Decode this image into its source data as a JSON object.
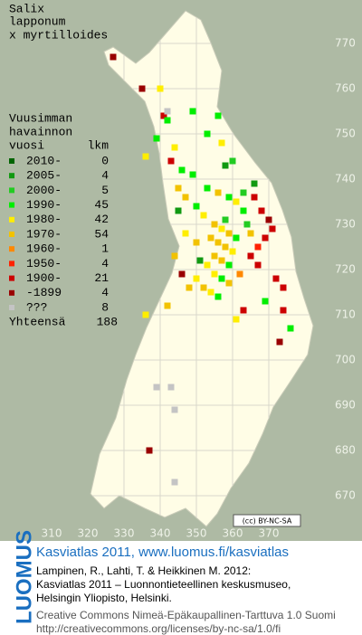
{
  "title": [
    "Salix",
    "lapponum",
    "x myrtilloides"
  ],
  "legend": {
    "header": [
      "Vuusimman",
      "havainnon",
      "vuosi"
    ],
    "count_header": "lkm",
    "rows": [
      {
        "label": "2010-",
        "count": 0,
        "color": "#006400"
      },
      {
        "label": "2005-",
        "count": 4,
        "color": "#119911"
      },
      {
        "label": "2000-",
        "count": 5,
        "color": "#22cc22"
      },
      {
        "label": "1990-",
        "count": 45,
        "color": "#00ee00"
      },
      {
        "label": "1980-",
        "count": 42,
        "color": "#ffee00"
      },
      {
        "label": "1970-",
        "count": 54,
        "color": "#f2c200"
      },
      {
        "label": "1960-",
        "count": 1,
        "color": "#ff8800"
      },
      {
        "label": "1950-",
        "count": 4,
        "color": "#ff2200"
      },
      {
        "label": "1900-",
        "count": 21,
        "color": "#cc0000"
      },
      {
        "label": "-1899",
        "count": 4,
        "color": "#990000"
      },
      {
        "label": "???",
        "count": 8,
        "color": "#c4c4c4"
      }
    ],
    "total_label": "Yhteensä",
    "total": 188
  },
  "xticks": [
    310,
    320,
    330,
    340,
    350,
    360,
    370
  ],
  "yticks": [
    670,
    680,
    690,
    700,
    710,
    720,
    730,
    740,
    750,
    760,
    770
  ],
  "records": [
    [
      327,
      767,
      9
    ],
    [
      335,
      760,
      9
    ],
    [
      340,
      760,
      4
    ],
    [
      341,
      754,
      8
    ],
    [
      342,
      755,
      10
    ],
    [
      342,
      753,
      3
    ],
    [
      339,
      749,
      3
    ],
    [
      349,
      755,
      3
    ],
    [
      356,
      754,
      3
    ],
    [
      353,
      750,
      3
    ],
    [
      357,
      748,
      4
    ],
    [
      344,
      747,
      4
    ],
    [
      343,
      744,
      8
    ],
    [
      346,
      742,
      3
    ],
    [
      349,
      741,
      3
    ],
    [
      353,
      738,
      3
    ],
    [
      356,
      737,
      5
    ],
    [
      359,
      736,
      3
    ],
    [
      361,
      735,
      4
    ],
    [
      363,
      733,
      3
    ],
    [
      345,
      738,
      5
    ],
    [
      347,
      736,
      5
    ],
    [
      350,
      734,
      3
    ],
    [
      352,
      732,
      4
    ],
    [
      355,
      730,
      5
    ],
    [
      357,
      729,
      4
    ],
    [
      359,
      728,
      5
    ],
    [
      361,
      727,
      3
    ],
    [
      354,
      727,
      5
    ],
    [
      356,
      726,
      5
    ],
    [
      358,
      725,
      5
    ],
    [
      360,
      724,
      4
    ],
    [
      355,
      723,
      5
    ],
    [
      357,
      722,
      5
    ],
    [
      359,
      721,
      3
    ],
    [
      353,
      721,
      4
    ],
    [
      355,
      719,
      4
    ],
    [
      357,
      718,
      3
    ],
    [
      359,
      717,
      5
    ],
    [
      352,
      716,
      5
    ],
    [
      354,
      715,
      4
    ],
    [
      356,
      714,
      3
    ],
    [
      350,
      718,
      4
    ],
    [
      348,
      716,
      5
    ],
    [
      346,
      719,
      9
    ],
    [
      366,
      736,
      8
    ],
    [
      368,
      733,
      8
    ],
    [
      370,
      731,
      9
    ],
    [
      371,
      729,
      8
    ],
    [
      369,
      727,
      8
    ],
    [
      367,
      725,
      7
    ],
    [
      365,
      723,
      8
    ],
    [
      367,
      721,
      8
    ],
    [
      372,
      718,
      8
    ],
    [
      374,
      716,
      8
    ],
    [
      369,
      713,
      3
    ],
    [
      376,
      707,
      3
    ],
    [
      374,
      711,
      8
    ],
    [
      373,
      704,
      9
    ],
    [
      363,
      711,
      8
    ],
    [
      361,
      709,
      4
    ],
    [
      344,
      723,
      5
    ],
    [
      342,
      712,
      5
    ],
    [
      336,
      710,
      4
    ],
    [
      343,
      694,
      10
    ],
    [
      339,
      694,
      10
    ],
    [
      344,
      689,
      10
    ],
    [
      337,
      680,
      9
    ],
    [
      344,
      673,
      10
    ],
    [
      336,
      745,
      4
    ],
    [
      360,
      744,
      2
    ],
    [
      358,
      743,
      1
    ],
    [
      364,
      730,
      2
    ],
    [
      362,
      719,
      6
    ],
    [
      365,
      728,
      5
    ],
    [
      347,
      728,
      4
    ],
    [
      350,
      726,
      5
    ],
    [
      345,
      733,
      1
    ],
    [
      363,
      737,
      2
    ],
    [
      351,
      722,
      1
    ],
    [
      358,
      731,
      2
    ],
    [
      366,
      739,
      1
    ]
  ],
  "license_badge": "(cc) BY-NC-SA",
  "footer": {
    "brand": "LUOMUS",
    "heading": "Kasviatlas 2011, www.luomus.fi/kasviatlas",
    "citation": [
      "Lampinen, R., Lahti, T. & Heikkinen M. 2012:",
      "Kasviatlas 2011 – Luonnontieteellinen keskusmuseo,",
      "Helsingin Yliopisto, Helsinki."
    ],
    "license": [
      "Creative Commons Nimeä-Epäkaupallinen-Tarttuva 1.0 Suomi",
      "http://creativecommons.org/licenses/by-nc-sa/1.0/fi"
    ]
  }
}
